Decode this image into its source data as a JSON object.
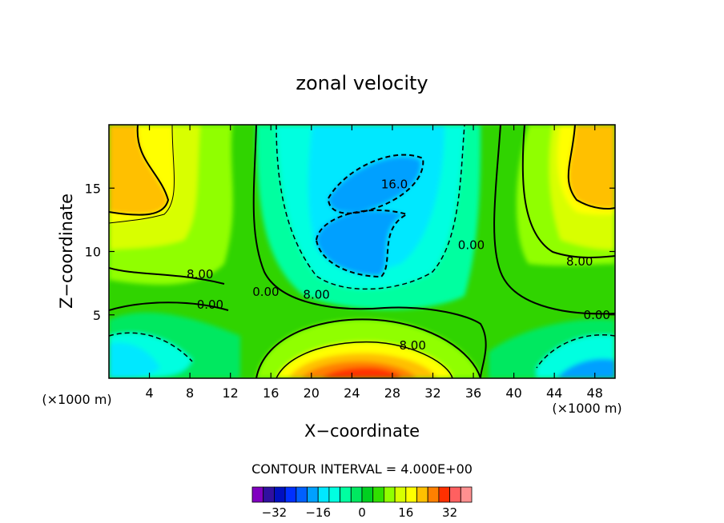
{
  "chart_data": {
    "type": "heatmap",
    "title": "zonal velocity",
    "xlabel": "X−coordinate",
    "ylabel": "Z−coordinate",
    "x_unit_left": "(×1000 m)",
    "x_unit_right": "(×1000 m)",
    "xlim": [
      0,
      50
    ],
    "ylim": [
      0,
      20
    ],
    "x_ticks": [
      4,
      8,
      12,
      16,
      20,
      24,
      28,
      32,
      36,
      40,
      44,
      48
    ],
    "y_ticks": [
      5,
      10,
      15
    ],
    "contour_interval_label": "CONTOUR INTERVAL = 4.000E+00",
    "colorbar": {
      "ticks": [
        -32,
        -16,
        0,
        16,
        32
      ],
      "tick_labels": [
        "−32",
        "−16",
        "0",
        "16",
        "32"
      ],
      "levels": [
        -36,
        -32,
        -28,
        -24,
        -20,
        -16,
        -12,
        -8,
        -4,
        0,
        4,
        8,
        12,
        16,
        20,
        24,
        28,
        32,
        36
      ],
      "colors": [
        "#8000c0",
        "#3010a0",
        "#0010c0",
        "#0030ff",
        "#0060ff",
        "#00a0ff",
        "#00e8ff",
        "#00ffe0",
        "#00ffa0",
        "#00e860",
        "#00d020",
        "#30e000",
        "#90ff00",
        "#d8ff00",
        "#ffff00",
        "#ffc000",
        "#ff8000",
        "#ff3000",
        "#ff6060",
        "#ff9090"
      ]
    },
    "contour_labels": [
      {
        "text": "8.00",
        "x": 9,
        "z": 8.2
      },
      {
        "text": "0.00",
        "x": 10,
        "z": 5.8
      },
      {
        "text": "0.00",
        "x": 15.5,
        "z": 6.8
      },
      {
        "text": "8.00",
        "x": 20.5,
        "z": 6.6
      },
      {
        "text": "16.0",
        "x": 28.2,
        "z": 15.3
      },
      {
        "text": "0.00",
        "x": 35.8,
        "z": 10.5
      },
      {
        "text": "8.00",
        "x": 46.5,
        "z": 9.2
      },
      {
        "text": "8.00",
        "x": 30,
        "z": 2.6
      },
      {
        "text": "0.00",
        "x": 48.2,
        "z": 5
      }
    ],
    "features": [
      {
        "value": 20,
        "x": 4,
        "z": 17
      },
      {
        "value": 20,
        "x": 47,
        "z": 17
      },
      {
        "value": -20,
        "x": 25,
        "z": 15
      },
      {
        "value": -20,
        "x": 24,
        "z": 11
      },
      {
        "value": 32,
        "x": 25,
        "z": 0.5
      },
      {
        "value": -16,
        "x": 2,
        "z": 2
      },
      {
        "value": -20,
        "x": 47,
        "z": 0.5
      }
    ]
  }
}
